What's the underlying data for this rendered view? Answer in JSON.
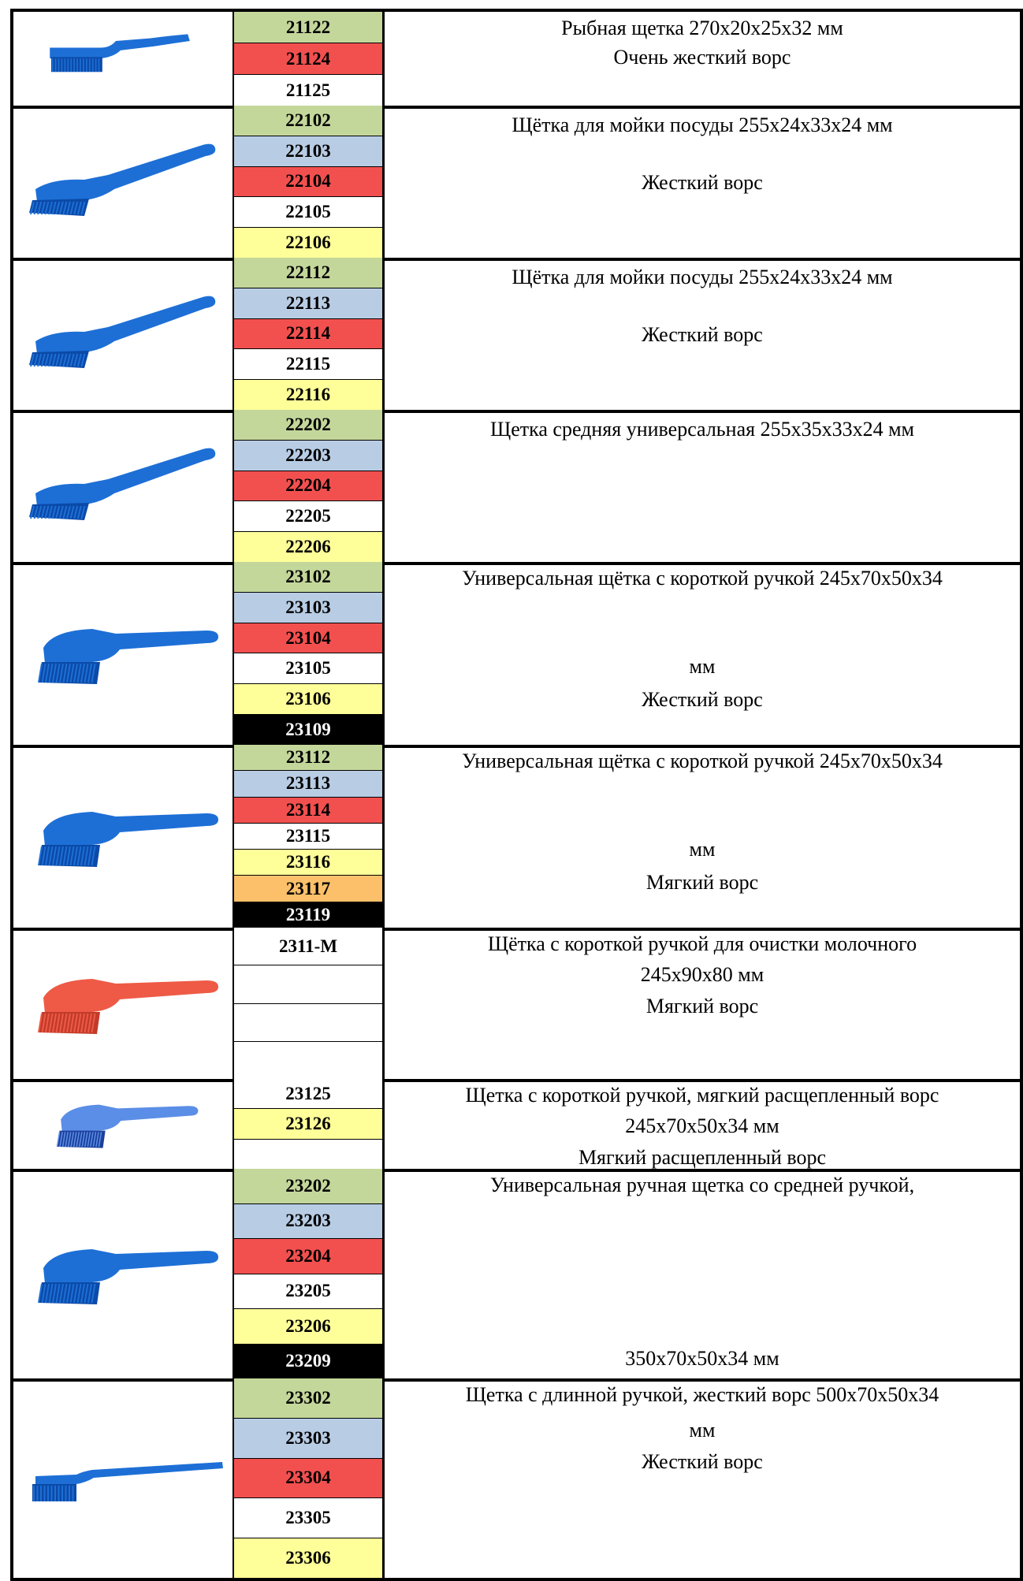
{
  "colors": {
    "green": "#c4d79b",
    "blue": "#b8cce4",
    "red": "#f2504f",
    "white": "#ffffff",
    "yellow": "#ffff99",
    "orange": "#fcc06a",
    "black": "#000000",
    "brush_blue": "#1d6fd6",
    "brush_red": "#ee5a45",
    "brush_light_blue": "#5b8ee6"
  },
  "rows": [
    {
      "image": "blue-fish-brush-image",
      "codes": [
        {
          "code": "21122",
          "color": "green"
        },
        {
          "code": "21124",
          "color": "red"
        },
        {
          "code": "21125",
          "color": "white"
        }
      ],
      "desc": [
        "Рыбная щетка 270х20х25х32 мм",
        "Очень жесткий ворс"
      ]
    },
    {
      "image": "blue-dish-brush-image",
      "codes": [
        {
          "code": "22102",
          "color": "green"
        },
        {
          "code": "22103",
          "color": "blue"
        },
        {
          "code": "22104",
          "color": "red"
        },
        {
          "code": "22105",
          "color": "white"
        },
        {
          "code": "22106",
          "color": "yellow"
        }
      ],
      "desc": [
        "Щётка для мойки посуды 255х24х33х24 мм",
        "Жесткий ворс"
      ]
    },
    {
      "image": "blue-dish-brush-image",
      "codes": [
        {
          "code": "22112",
          "color": "green"
        },
        {
          "code": "22113",
          "color": "blue"
        },
        {
          "code": "22114",
          "color": "red"
        },
        {
          "code": "22115",
          "color": "white"
        },
        {
          "code": "22116",
          "color": "yellow"
        }
      ],
      "desc": [
        "Щётка для мойки посуды 255х24х33х24 мм",
        "Жесткий ворс"
      ]
    },
    {
      "image": "blue-medium-universal-brush-image",
      "codes": [
        {
          "code": "22202",
          "color": "green"
        },
        {
          "code": "22203",
          "color": "blue"
        },
        {
          "code": "22204",
          "color": "red"
        },
        {
          "code": "22205",
          "color": "white"
        },
        {
          "code": "22206",
          "color": "yellow"
        }
      ],
      "desc": [
        "Щетка средняя универсальная 255х35х33х24 мм"
      ]
    },
    {
      "image": "blue-short-handle-brush-image",
      "codes": [
        {
          "code": "23102",
          "color": "green"
        },
        {
          "code": "23103",
          "color": "blue"
        },
        {
          "code": "23104",
          "color": "red"
        },
        {
          "code": "23105",
          "color": "white"
        },
        {
          "code": "23106",
          "color": "yellow"
        },
        {
          "code": "23109",
          "color": "black"
        }
      ],
      "desc": [
        "Универсальная щётка с короткой ручкой 245х70х50х34",
        "мм",
        "Жесткий ворс"
      ]
    },
    {
      "image": "blue-short-handle-brush-image",
      "codes": [
        {
          "code": "23112",
          "color": "green"
        },
        {
          "code": "23113",
          "color": "blue"
        },
        {
          "code": "23114",
          "color": "red"
        },
        {
          "code": "23115",
          "color": "white"
        },
        {
          "code": "23116",
          "color": "yellow"
        },
        {
          "code": "23117",
          "color": "orange"
        },
        {
          "code": "23119",
          "color": "black"
        }
      ],
      "desc": [
        "Универсальная щётка с короткой ручкой 245х70х50х34",
        "мм",
        "Мягкий ворс"
      ]
    },
    {
      "image": "red-dairy-brush-image",
      "codes": [
        {
          "code": "2311-М",
          "color": "white"
        },
        {
          "code": "",
          "color": "white"
        },
        {
          "code": "",
          "color": "white"
        },
        {
          "code": "",
          "color": "white"
        }
      ],
      "desc": [
        "Щётка с короткой ручкой для очистки молочного",
        "245х90х80 мм",
        "Мягкий ворс"
      ]
    },
    {
      "image": "blue-split-bristle-brush-image",
      "codes": [
        {
          "code": "23125",
          "color": "white"
        },
        {
          "code": "23126",
          "color": "yellow"
        },
        {
          "code": "",
          "color": "white"
        }
      ],
      "desc": [
        "Щетка с короткой ручкой, мягкий расщепленный ворс",
        "245х70х50х34 мм",
        "Мягкий расщепленный ворс"
      ]
    },
    {
      "image": "blue-medium-handle-brush-image",
      "codes": [
        {
          "code": "23202",
          "color": "green"
        },
        {
          "code": "23203",
          "color": "blue"
        },
        {
          "code": "23204",
          "color": "red"
        },
        {
          "code": "23205",
          "color": "white"
        },
        {
          "code": "23206",
          "color": "yellow"
        },
        {
          "code": "23209",
          "color": "black"
        }
      ],
      "desc": [
        "Универсальная ручная щетка со средней ручкой,",
        "350х70х50х34 мм"
      ]
    },
    {
      "image": "blue-long-handle-brush-image",
      "codes": [
        {
          "code": "23302",
          "color": "green"
        },
        {
          "code": "23303",
          "color": "blue"
        },
        {
          "code": "23304",
          "color": "red"
        },
        {
          "code": "23305",
          "color": "white"
        },
        {
          "code": "23306",
          "color": "yellow"
        }
      ],
      "desc": [
        "Щетка с длинной ручкой, жесткий ворс 500х70х50х34",
        "мм",
        "Жесткий ворс"
      ]
    }
  ]
}
